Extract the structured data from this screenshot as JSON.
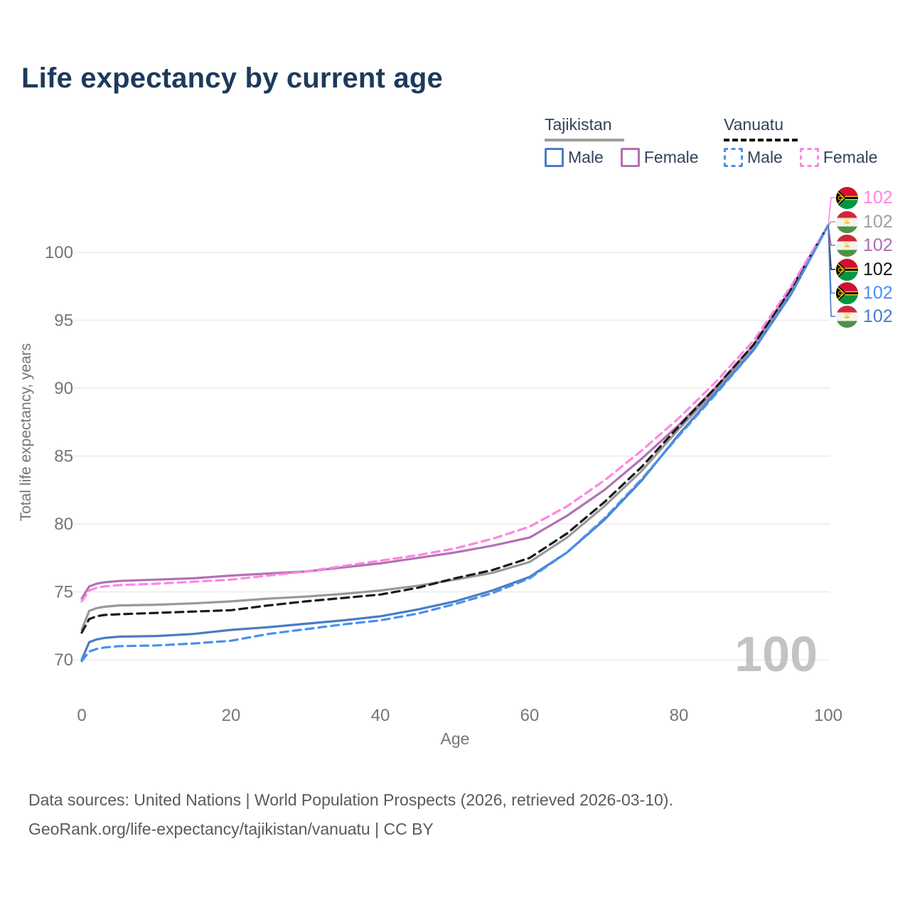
{
  "header": {
    "title": "Life expectancy by current age"
  },
  "legend": {
    "groups": [
      {
        "name": "Tajikistan",
        "line_style": "solid",
        "line_color": "#9e9e9e",
        "items": [
          {
            "label": "Male",
            "color": "#4a7cc4",
            "dash": false
          },
          {
            "label": "Female",
            "color": "#b271b2",
            "dash": false
          }
        ]
      },
      {
        "name": "Vanuatu",
        "line_style": "dashed",
        "line_color": "#141414",
        "items": [
          {
            "label": "Male",
            "color": "#4a90ee",
            "dash": true
          },
          {
            "label": "Female",
            "color": "#ff85e2",
            "dash": true
          }
        ]
      }
    ]
  },
  "watermark": "100",
  "chart_data": {
    "type": "line",
    "title": "Life expectancy by current age",
    "xlabel": "Age",
    "ylabel": "Total life expectancy, years",
    "xlim": [
      0,
      100
    ],
    "ylim": [
      68.5,
      103
    ],
    "xticks": [
      0,
      20,
      40,
      60,
      80,
      100
    ],
    "yticks": [
      70,
      75,
      80,
      85,
      90,
      95,
      100
    ],
    "grid": "horizontal",
    "legend_position": "top-right",
    "x": [
      0,
      1,
      2,
      3,
      5,
      10,
      15,
      20,
      25,
      30,
      35,
      40,
      45,
      50,
      55,
      60,
      65,
      70,
      75,
      80,
      85,
      90,
      95,
      100
    ],
    "series": [
      {
        "name": "Tajikistan Overall",
        "country": "tajikistan",
        "sex": "both",
        "color": "#999999",
        "dash": "solid",
        "values": [
          72.2,
          73.6,
          73.8,
          73.9,
          74.0,
          74.05,
          74.15,
          74.3,
          74.5,
          74.65,
          74.85,
          75.1,
          75.45,
          75.9,
          76.4,
          77.2,
          79.0,
          81.3,
          83.9,
          87.0,
          89.9,
          93.0,
          97.1,
          102
        ]
      },
      {
        "name": "Tajikistan Female",
        "country": "tajikistan",
        "sex": "female",
        "color": "#b271b2",
        "dash": "solid",
        "values": [
          74.5,
          75.4,
          75.6,
          75.7,
          75.8,
          75.9,
          76.0,
          76.2,
          76.35,
          76.5,
          76.8,
          77.1,
          77.5,
          77.9,
          78.4,
          79.0,
          80.6,
          82.5,
          84.8,
          87.3,
          90.1,
          93.2,
          97.3,
          102
        ]
      },
      {
        "name": "Tajikistan Male",
        "country": "tajikistan",
        "sex": "male",
        "color": "#4a7cc4",
        "dash": "solid",
        "values": [
          70.0,
          71.3,
          71.5,
          71.6,
          71.7,
          71.75,
          71.9,
          72.2,
          72.4,
          72.65,
          72.9,
          73.2,
          73.7,
          74.3,
          75.1,
          76.1,
          77.9,
          80.3,
          83.2,
          86.6,
          89.7,
          92.8,
          96.9,
          102
        ]
      },
      {
        "name": "Vanuatu Overall",
        "country": "vanuatu",
        "sex": "both",
        "color": "#1a1a1a",
        "dash": "dashed",
        "values": [
          72.0,
          73.0,
          73.2,
          73.3,
          73.35,
          73.45,
          73.55,
          73.65,
          74.0,
          74.3,
          74.55,
          74.8,
          75.3,
          76.0,
          76.6,
          77.5,
          79.3,
          81.6,
          84.2,
          87.2,
          90.1,
          93.2,
          97.3,
          102
        ]
      },
      {
        "name": "Vanuatu Female",
        "country": "vanuatu",
        "sex": "female",
        "color": "#ff85e2",
        "dash": "dashed",
        "values": [
          74.3,
          75.1,
          75.3,
          75.4,
          75.5,
          75.6,
          75.75,
          75.9,
          76.2,
          76.5,
          76.9,
          77.3,
          77.7,
          78.2,
          78.9,
          79.8,
          81.3,
          83.2,
          85.4,
          87.8,
          90.5,
          93.5,
          97.5,
          102
        ]
      },
      {
        "name": "Vanuatu Male",
        "country": "vanuatu",
        "sex": "male",
        "color": "#4a90ee",
        "dash": "dashed",
        "values": [
          69.9,
          70.6,
          70.8,
          70.9,
          71.0,
          71.05,
          71.2,
          71.4,
          71.9,
          72.25,
          72.6,
          72.9,
          73.4,
          74.1,
          74.9,
          76.0,
          77.9,
          80.4,
          83.3,
          86.5,
          89.6,
          92.8,
          96.9,
          102
        ]
      }
    ],
    "end_labels": [
      {
        "value": "102",
        "series": "Vanuatu Female",
        "country": "vanuatu",
        "color": "#ff85e2",
        "y_center": 278
      },
      {
        "value": "102",
        "series": "Tajikistan Overall",
        "country": "tajikistan",
        "color": "#a0a0a0",
        "y_center": 312
      },
      {
        "value": "102",
        "series": "Tajikistan Female",
        "country": "tajikistan",
        "color": "#b06ab3",
        "y_center": 345
      },
      {
        "value": "102",
        "series": "Vanuatu Overall",
        "country": "vanuatu",
        "color": "#141414",
        "y_center": 379
      },
      {
        "value": "102",
        "series": "Vanuatu Male",
        "country": "vanuatu",
        "color": "#4a90ee",
        "y_center": 412
      },
      {
        "value": "102",
        "series": "Tajikistan Male",
        "country": "tajikistan",
        "color": "#4a7cc4",
        "y_center": 445
      }
    ]
  },
  "footer": {
    "line1": "Data sources: United Nations | World Population Prospects (2026, retrieved 2026-03-10).",
    "line2": "GeoRank.org/life-expectancy/tajikistan/vanuatu | CC BY"
  }
}
